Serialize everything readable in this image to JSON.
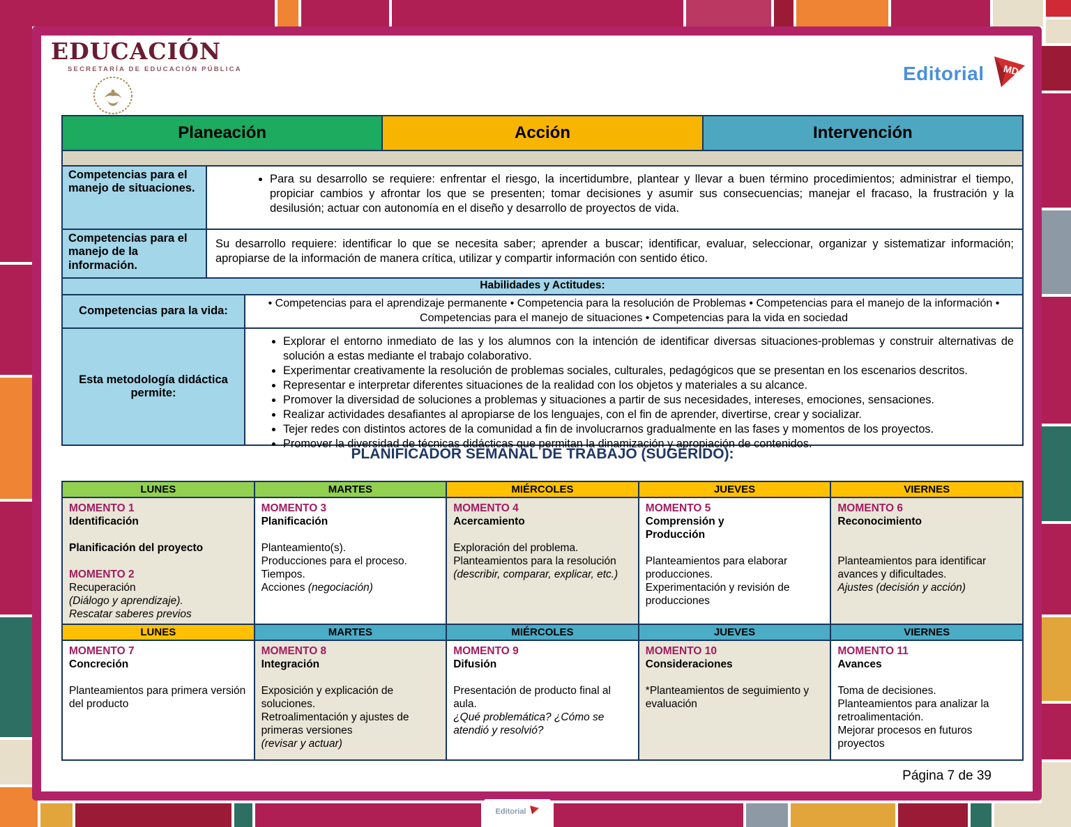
{
  "header": {
    "sep_logo": {
      "title": "EDUCACIÓN",
      "subtitle": "SECRETARÍA DE EDUCACIÓN PÚBLICA"
    },
    "publisher_logo": {
      "word": "Editorial",
      "initials": "MD"
    }
  },
  "phase_header": {
    "cells": [
      {
        "label": "Planeación",
        "color": "#1cab5f"
      },
      {
        "label": "Acción",
        "color": "#f7b500"
      },
      {
        "label": "Intervención",
        "color": "#4da7c0"
      }
    ]
  },
  "competencias_table": {
    "rows": [
      {
        "label": "Competencias para el manejo de situaciones.",
        "bullet": "Para su desarrollo se requiere: enfrentar el riesgo, la incertidumbre, plantear y llevar a buen término procedimientos; administrar el tiempo, propiciar cambios y afrontar los que se presenten; tomar decisiones y asumir sus consecuencias; manejar el fracaso, la frustración y la desilusión; actuar con autonomía en el diseño y desarrollo de proyectos de vida."
      },
      {
        "label": "Competencias para el manejo de la información.",
        "text": "Su desarrollo requiere: identificar lo que se necesita saber; aprender a buscar; identificar, evaluar, seleccionar, organizar y sistematizar información; apropiarse de la información de manera crítica, utilizar y compartir información con sentido ético."
      }
    ],
    "habilidades_header": "Habilidades y Actitudes:",
    "vida": {
      "label": "Competencias para la vida:",
      "text": "• Competencias para el aprendizaje permanente • Competencia para la resolución de Problemas • Competencias para el manejo de la información • Competencias para el manejo de situaciones • Competencias para la vida en sociedad"
    },
    "metodologia": {
      "label": "Esta metodología didáctica permite:",
      "bullets": [
        "Explorar el entorno inmediato de las y los alumnos con la intención de identificar diversas situaciones-problemas y construir alternativas de solución a estas mediante el trabajo colaborativo.",
        "Experimentar creativamente la resolución de problemas sociales, culturales, pedagógicos que se presentan en los escenarios descritos.",
        "Representar e interpretar diferentes situaciones de la realidad con los objetos y materiales a su alcance.",
        "Promover la diversidad de soluciones a problemas y situaciones a partir de sus necesidades, intereses, emociones, sensaciones.",
        "Realizar actividades desafiantes al apropiarse de los lenguajes, con el fin de aprender, divertirse, crear y socializar.",
        "Tejer redes con distintos actores de la comunidad a fin de involucrarnos gradualmente en las fases y momentos de los proyectos.",
        "Promover la diversidad de técnicas didácticas que permitan la dinamización y apropiación de contenidos."
      ]
    }
  },
  "planner": {
    "title": "PLANIFICADOR SEMANAL DE TRABAJO (SUGERIDO):",
    "week1": {
      "days": [
        {
          "label": "LUNES",
          "color": "#92d050"
        },
        {
          "label": "MARTES",
          "color": "#92d050"
        },
        {
          "label": "MIÉRCOLES",
          "color": "#ffc000"
        },
        {
          "label": "JUEVES",
          "color": "#ffc000"
        },
        {
          "label": "VIERNES",
          "color": "#ffc000"
        }
      ],
      "cells": [
        {
          "lines": [
            {
              "s": "mom",
              "t": "MOMENTO 1"
            },
            {
              "s": "b",
              "t": "Identificación"
            },
            {
              "s": "blank",
              "t": ""
            },
            {
              "s": "b",
              "t": "Planificación del proyecto"
            },
            {
              "s": "blank",
              "t": ""
            },
            {
              "s": "mom",
              "t": "MOMENTO 2"
            },
            {
              "s": "n",
              "t": "Recuperación"
            },
            {
              "s": "i",
              "t": "(Diálogo y aprendizaje)."
            },
            {
              "s": "i",
              "t": "Rescatar saberes previos"
            }
          ]
        },
        {
          "lines": [
            {
              "s": "mom",
              "t": "MOMENTO 3"
            },
            {
              "s": "b",
              "t": "Planificación"
            },
            {
              "s": "blank",
              "t": ""
            },
            {
              "s": "n",
              "t": "Planteamiento(s)."
            },
            {
              "s": "n",
              "t": "Producciones para el proceso."
            },
            {
              "s": "n",
              "t": "Tiempos."
            },
            {
              "s": "n",
              "t": "Acciones ",
              "i": "(negociación)"
            }
          ]
        },
        {
          "lines": [
            {
              "s": "mom",
              "t": "MOMENTO 4"
            },
            {
              "s": "b",
              "t": "Acercamiento"
            },
            {
              "s": "blank",
              "t": ""
            },
            {
              "s": "n",
              "t": "Exploración del problema."
            },
            {
              "s": "n",
              "t": "Planteamientos para la resolución"
            },
            {
              "s": "i",
              "t": "(describir, comparar, explicar, etc.)"
            }
          ]
        },
        {
          "lines": [
            {
              "s": "mom",
              "t": "MOMENTO 5"
            },
            {
              "s": "b",
              "t": "Comprensión y"
            },
            {
              "s": "b",
              "t": "Producción"
            },
            {
              "s": "blank",
              "t": ""
            },
            {
              "s": "n",
              "t": "Planteamientos para elaborar producciones."
            },
            {
              "s": "n",
              "t": "Experimentación y revisión de producciones"
            }
          ]
        },
        {
          "lines": [
            {
              "s": "mom",
              "t": "MOMENTO 6"
            },
            {
              "s": "b",
              "t": "Reconocimiento"
            },
            {
              "s": "blank",
              "t": ""
            },
            {
              "s": "blank",
              "t": ""
            },
            {
              "s": "n",
              "t": "Planteamientos para identificar avances y dificultades."
            },
            {
              "s": "i",
              "t": "Ajustes (decisión y acción)"
            }
          ]
        }
      ]
    },
    "week2": {
      "days": [
        {
          "label": "LUNES",
          "color": "#ffc000"
        },
        {
          "label": "MARTES",
          "color": "#4bacc6"
        },
        {
          "label": "MIÉRCOLES",
          "color": "#4bacc6"
        },
        {
          "label": "JUEVES",
          "color": "#4bacc6"
        },
        {
          "label": "VIERNES",
          "color": "#4bacc6"
        }
      ],
      "cells": [
        {
          "lines": [
            {
              "s": "mom",
              "t": "MOMENTO 7"
            },
            {
              "s": "b",
              "t": "Concreción"
            },
            {
              "s": "blank",
              "t": ""
            },
            {
              "s": "n",
              "t": "Planteamientos para primera versión del producto"
            }
          ]
        },
        {
          "lines": [
            {
              "s": "mom",
              "t": "MOMENTO 8"
            },
            {
              "s": "b",
              "t": "Integración"
            },
            {
              "s": "blank",
              "t": ""
            },
            {
              "s": "n",
              "t": "Exposición y explicación de soluciones."
            },
            {
              "s": "n",
              "t": "Retroalimentación y ajustes de primeras versiones"
            },
            {
              "s": "i",
              "t": "(revisar y actuar)"
            }
          ]
        },
        {
          "lines": [
            {
              "s": "mom",
              "t": "MOMENTO 9"
            },
            {
              "s": "b",
              "t": "Difusión"
            },
            {
              "s": "blank",
              "t": ""
            },
            {
              "s": "n",
              "t": "Presentación de producto final al aula."
            },
            {
              "s": "i",
              "t": "¿Qué problemática? ¿Cómo se atendió y resolvió?"
            }
          ]
        },
        {
          "lines": [
            {
              "s": "mom",
              "t": "MOMENTO 10"
            },
            {
              "s": "b",
              "t": "Consideraciones"
            },
            {
              "s": "blank",
              "t": ""
            },
            {
              "s": "n",
              "t": "*Planteamientos de seguimiento y evaluación"
            }
          ]
        },
        {
          "lines": [
            {
              "s": "mom",
              "t": "MOMENTO 11"
            },
            {
              "s": "b",
              "t": "Avances"
            },
            {
              "s": "blank",
              "t": ""
            },
            {
              "s": "n",
              "t": "Toma de decisiones."
            },
            {
              "s": "n",
              "t": "Planteamientos para analizar la retroalimentación."
            },
            {
              "s": "n",
              "t": "Mejorar procesos en futuros proyectos"
            }
          ]
        }
      ]
    }
  },
  "footer": {
    "page_indicator": "Página 7 de 39"
  },
  "palette": {
    "frame": "#b12366",
    "crimson": "#b01f53",
    "dark_red": "#9b1b37",
    "orange": "#ee8434",
    "amber": "#e2a53b",
    "teal_dark": "#2e6f63",
    "gray_blue": "#8d9aa6",
    "beige": "#e7dfc9",
    "label_blue": "#a3d6e9",
    "momento_magenta": "#a01d62",
    "title_navy": "#1f3864",
    "border_navy": "#17365d"
  }
}
